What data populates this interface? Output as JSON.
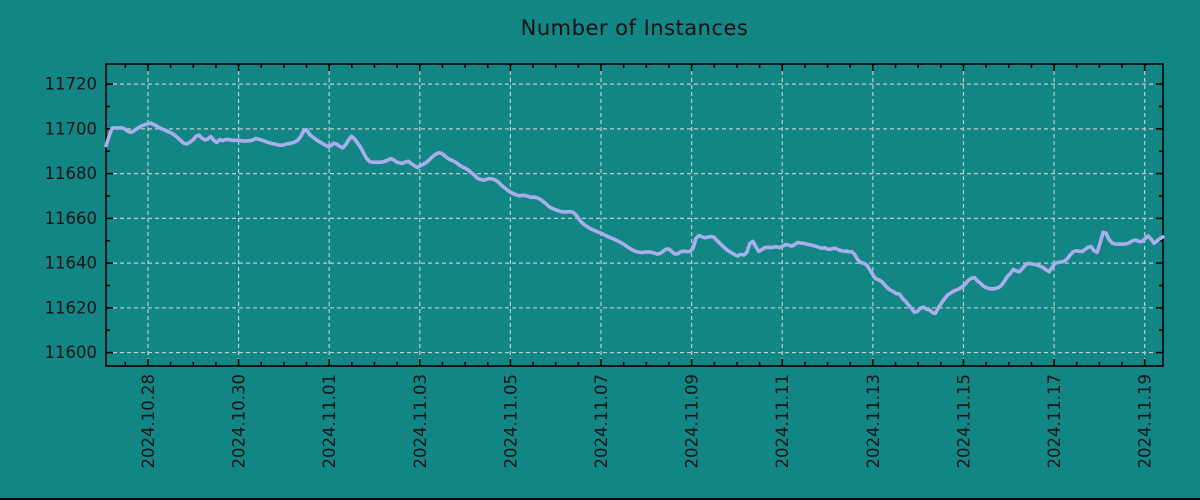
{
  "title": "Number of Instances",
  "chart_data": {
    "type": "line",
    "title": "Number of Instances",
    "xlabel": "",
    "ylabel": "",
    "grid": true,
    "legend": "none",
    "ylim": [
      11594,
      11729
    ],
    "y_ticks": [
      11600,
      11620,
      11640,
      11660,
      11680,
      11700,
      11720
    ],
    "y_minor_ticks": [
      11610,
      11630,
      11650,
      11670,
      11690,
      11710
    ],
    "x_tick_labels": [
      "2024.10.28",
      "2024.10.30",
      "2024.11.01",
      "2024.11.03",
      "2024.11.05",
      "2024.11.07",
      "2024.11.09",
      "2024.11.11",
      "2024.11.13",
      "2024.11.15",
      "2024.11.17",
      "2024.11.19"
    ],
    "x_axis": {
      "span_days": 23.33,
      "first_tick_day": 0.926,
      "major_step_days": 2,
      "minor_step_days": 0.5
    },
    "colors": {
      "background": "#128585",
      "axis": "#000000",
      "grid": "#c3cbca",
      "text": "#151515",
      "line": "#abaeec"
    },
    "series": [
      {
        "name": "instances",
        "color": "#abaeec",
        "values": [
          11692.5,
          11696.5,
          11700.3,
          11700.5,
          11700.4,
          11700.5,
          11700.2,
          11699.2,
          11698.5,
          11698.8,
          11699.8,
          11700.6,
          11701.4,
          11701.8,
          11702.3,
          11702.6,
          11701.9,
          11701.2,
          11700.4,
          11699.8,
          11699.2,
          11698.6,
          11698.0,
          11697.1,
          11696.0,
          11694.7,
          11693.6,
          11693.3,
          11694.0,
          11695.0,
          11696.6,
          11697.2,
          11696.0,
          11695.0,
          11695.5,
          11696.6,
          11694.9,
          11693.9,
          11695.2,
          11694.7,
          11695.3,
          11695.2,
          11694.9,
          11694.9,
          11694.9,
          11694.7,
          11694.6,
          11694.6,
          11694.7,
          11695.0,
          11695.7,
          11695.4,
          11695.0,
          11694.5,
          11694.0,
          11693.6,
          11693.3,
          11693.0,
          11692.7,
          11692.7,
          11693.1,
          11693.4,
          11693.7,
          11694.1,
          11694.9,
          11696.5,
          11699.0,
          11699.6,
          11697.5,
          11696.4,
          11695.4,
          11694.5,
          11693.7,
          11692.9,
          11692.2,
          11692.3,
          11693.6,
          11693.2,
          11692.2,
          11691.5,
          11692.8,
          11695.0,
          11696.7,
          11695.5,
          11693.7,
          11691.8,
          11689.3,
          11686.9,
          11685.4,
          11685.1,
          11685.1,
          11685.1,
          11685.1,
          11685.4,
          11686.0,
          11686.7,
          11686.2,
          11685.2,
          11684.8,
          11684.6,
          11685.2,
          11685.5,
          11684.4,
          11683.5,
          11682.8,
          11683.6,
          11684.2,
          11685.0,
          11686.2,
          11687.5,
          11688.6,
          11689.3,
          11689.1,
          11688.1,
          11687.0,
          11686.2,
          11685.7,
          11684.9,
          11683.8,
          11683.0,
          11682.4,
          11681.6,
          11680.4,
          11679.4,
          11678.0,
          11677.4,
          11677.1,
          11677.4,
          11677.8,
          11677.6,
          11677.2,
          11676.2,
          11674.8,
          11673.8,
          11672.7,
          11671.8,
          11671.1,
          11670.5,
          11670.1,
          11670.3,
          11670.2,
          11669.8,
          11669.4,
          11669.5,
          11669.2,
          11668.5,
          11667.5,
          11666.4,
          11665.2,
          11664.4,
          11663.9,
          11663.4,
          11663.0,
          11662.9,
          11662.9,
          11663.0,
          11662.7,
          11661.5,
          11659.5,
          11658.0,
          11656.9,
          11656.0,
          11655.2,
          11654.7,
          11654.1,
          11653.5,
          11652.9,
          11652.2,
          11651.6,
          11651.1,
          11650.5,
          11649.8,
          11649.1,
          11648.3,
          11647.4,
          11646.5,
          11645.7,
          11645.2,
          11644.9,
          11644.7,
          11644.9,
          11645.0,
          11644.9,
          11644.5,
          11644.0,
          11644.3,
          11645.2,
          11646.2,
          11646.3,
          11645.1,
          11644.0,
          11644.2,
          11645.1,
          11645.3,
          11645.1,
          11645.2,
          11646.5,
          11651.0,
          11652.3,
          11651.8,
          11651.3,
          11651.6,
          11651.9,
          11651.6,
          11650.2,
          11648.9,
          11647.6,
          11646.3,
          11645.3,
          11644.5,
          11643.7,
          11643.2,
          11643.9,
          11643.6,
          11644.8,
          11648.7,
          11649.7,
          11647.3,
          11645.2,
          11646.0,
          11646.9,
          11647.1,
          11646.9,
          11647.2,
          11647.3,
          11646.9,
          11647.6,
          11648.3,
          11648.0,
          11647.6,
          11648.3,
          11649.2,
          11649.0,
          11648.8,
          11648.5,
          11648.2,
          11647.9,
          11647.5,
          11647.1,
          11646.6,
          11646.9,
          11646.2,
          11646.2,
          11646.6,
          11646.4,
          11645.7,
          11645.4,
          11645.3,
          11645.1,
          11645.1,
          11643.9,
          11641.6,
          11640.3,
          11640.0,
          11639.2,
          11637.2,
          11635.1,
          11633.1,
          11632.6,
          11631.8,
          11630.4,
          11628.9,
          11627.9,
          11627.2,
          11626.3,
          11626.2,
          11624.2,
          11622.9,
          11621.3,
          11619.8,
          11618.0,
          11618.4,
          11619.9,
          11620.3,
          11619.5,
          11619.1,
          11617.9,
          11617.5,
          11620.0,
          11622.1,
          11624.0,
          11625.7,
          11626.5,
          11627.4,
          11628.0,
          11628.5,
          11629.4,
          11630.7,
          11632.3,
          11633.2,
          11633.5,
          11632.1,
          11631.0,
          11629.7,
          11629.0,
          11628.6,
          11628.5,
          11628.6,
          11629.0,
          11630.0,
          11631.9,
          11634.0,
          11635.3,
          11637.2,
          11636.5,
          11636.1,
          11637.5,
          11639.1,
          11639.9,
          11639.7,
          11639.4,
          11639.1,
          11638.6,
          11638.0,
          11636.9,
          11636.1,
          11638.2,
          11639.9,
          11640.3,
          11640.5,
          11640.9,
          11641.9,
          11643.6,
          11645.1,
          11645.5,
          11645.3,
          11645.2,
          11646.1,
          11647.1,
          11647.4,
          11645.5,
          11644.8,
          11649.0,
          11653.7,
          11653.3,
          11650.5,
          11649.0,
          11648.5,
          11648.5,
          11648.5,
          11648.5,
          11648.7,
          11649.3,
          11650.1,
          11650.3,
          11649.7,
          11649.6,
          11650.9,
          11652.1,
          11650.8,
          11648.9,
          11649.9,
          11651.0,
          11651.7
        ]
      }
    ]
  }
}
